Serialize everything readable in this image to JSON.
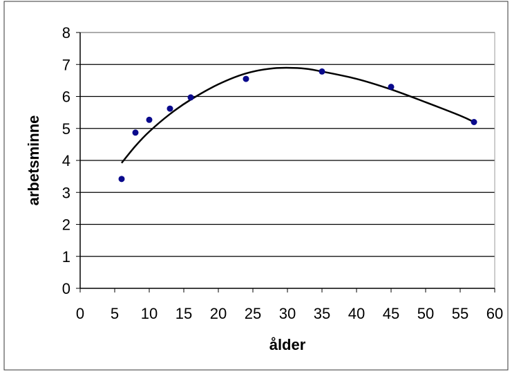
{
  "chart_data": {
    "type": "scatter",
    "xlabel": "ålder",
    "ylabel": "arbetsminne",
    "xlim": [
      0,
      60
    ],
    "ylim": [
      0,
      8
    ],
    "xticks": [
      "0",
      "5",
      "10",
      "15",
      "20",
      "25",
      "30",
      "35",
      "40",
      "45",
      "50",
      "55",
      "60"
    ],
    "yticks": [
      "0",
      "1",
      "2",
      "3",
      "4",
      "5",
      "6",
      "7",
      "8"
    ],
    "grid": "horizontal",
    "legend": "none",
    "series": [
      {
        "kind": "points",
        "color": "#0a0a8c",
        "x": [
          6,
          8,
          10,
          13,
          16,
          24,
          35,
          45,
          57
        ],
        "y": [
          3.42,
          4.87,
          5.27,
          5.62,
          5.97,
          6.55,
          6.78,
          6.3,
          5.2
        ]
      },
      {
        "kind": "trendline",
        "color": "#000000",
        "x": [
          6,
          8,
          10,
          13,
          16,
          20,
          24,
          28,
          32,
          35,
          40,
          45,
          50,
          55,
          57
        ],
        "y": [
          3.92,
          4.45,
          4.9,
          5.45,
          5.9,
          6.38,
          6.72,
          6.88,
          6.88,
          6.78,
          6.55,
          6.22,
          5.82,
          5.4,
          5.2
        ]
      }
    ]
  }
}
